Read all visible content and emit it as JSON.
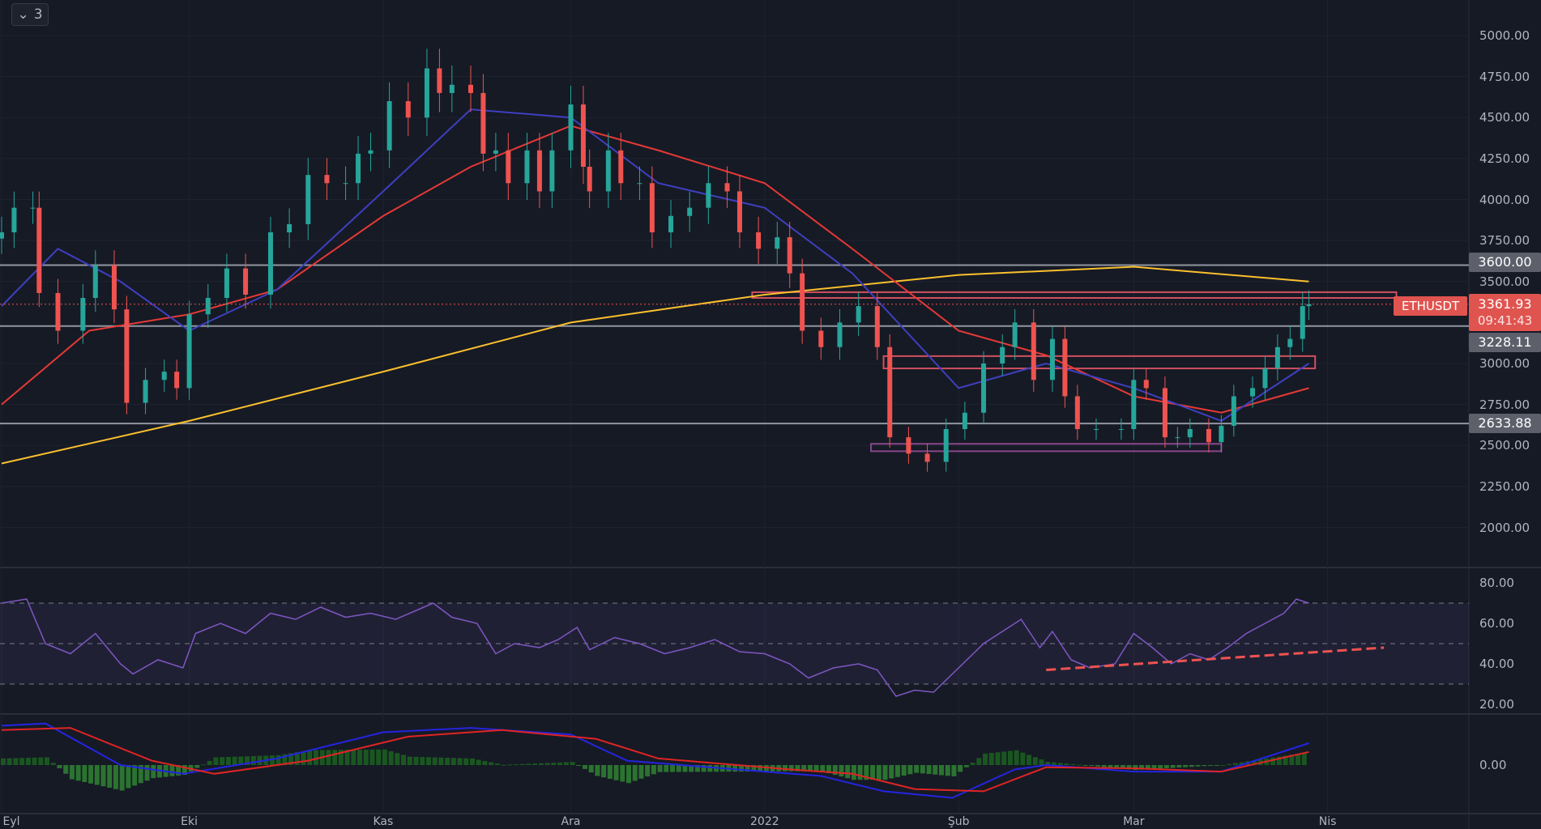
{
  "legend_toggle": {
    "icon": "chevron-down-icon",
    "count": "3"
  },
  "symbol": "ETHUSDT",
  "last_price": "3361.93",
  "countdown": "09:41:43",
  "colors": {
    "up": "#26a69a",
    "down": "#ef5350",
    "ma_fast": "#3f3fbf",
    "ma_mid": "#e53935",
    "ma_slow": "#fbc02d",
    "rsi": "#7e57c2",
    "macd": "#2424e0",
    "signal": "#e02424",
    "level": "#b2b5be",
    "zone_red": "#f05a6a",
    "zone_purple": "#9c4f9c"
  },
  "price_axis": {
    "ticks": [
      "5000.00",
      "4750.00",
      "4500.00",
      "4250.00",
      "4000.00",
      "3750.00",
      "3500.00",
      "3000.00",
      "2750.00",
      "2500.00",
      "2250.00",
      "2000.00"
    ]
  },
  "levels": [
    {
      "label": "3600.00",
      "value": 3600
    },
    {
      "label": "3228.11",
      "value": 3228.11
    },
    {
      "label": "2633.88",
      "value": 2633.88
    }
  ],
  "zones": [
    {
      "from": "2021-12-30",
      "to": "2022-04-12",
      "low": 3400,
      "high": 3435,
      "color": "zone_red"
    },
    {
      "from": "2022-01-20",
      "to": "2022-03-30",
      "low": 2970,
      "high": 3045,
      "color": "zone_red"
    },
    {
      "from": "2022-01-18",
      "to": "2022-03-15",
      "low": 2465,
      "high": 2510,
      "color": "zone_purple"
    }
  ],
  "time_axis": [
    {
      "label": "Eyl",
      "date": "2021-09-01"
    },
    {
      "label": "Eki",
      "date": "2021-10-01"
    },
    {
      "label": "Kas",
      "date": "2021-11-01"
    },
    {
      "label": "Ara",
      "date": "2021-12-01"
    },
    {
      "label": "2022",
      "date": "2022-01-01"
    },
    {
      "label": "Şub",
      "date": "2022-02-01"
    },
    {
      "label": "Mar",
      "date": "2022-03-01"
    },
    {
      "label": "Nis",
      "date": "2022-04-01"
    }
  ],
  "rsi_axis": {
    "ticks": [
      "80.00",
      "60.00",
      "40.00",
      "20.00"
    ]
  },
  "macd_axis": {
    "ticks": [
      "0.00"
    ]
  },
  "chart_data": {
    "type": "candlestick",
    "candles_close": [
      [
        "2021-09-01",
        3800
      ],
      [
        "2021-09-03",
        3950
      ],
      [
        "2021-09-06",
        3950
      ],
      [
        "2021-09-07",
        3430
      ],
      [
        "2021-09-10",
        3200
      ],
      [
        "2021-09-14",
        3400
      ],
      [
        "2021-09-16",
        3600
      ],
      [
        "2021-09-19",
        3330
      ],
      [
        "2021-09-21",
        2760
      ],
      [
        "2021-09-24",
        2900
      ],
      [
        "2021-09-27",
        2950
      ],
      [
        "2021-09-29",
        2850
      ],
      [
        "2021-10-01",
        3300
      ],
      [
        "2021-10-04",
        3400
      ],
      [
        "2021-10-07",
        3580
      ],
      [
        "2021-10-10",
        3420
      ],
      [
        "2021-10-14",
        3800
      ],
      [
        "2021-10-17",
        3850
      ],
      [
        "2021-10-20",
        4150
      ],
      [
        "2021-10-23",
        4100
      ],
      [
        "2021-10-26",
        4100
      ],
      [
        "2021-10-28",
        4280
      ],
      [
        "2021-10-30",
        4300
      ],
      [
        "2021-11-02",
        4600
      ],
      [
        "2021-11-05",
        4500
      ],
      [
        "2021-11-08",
        4800
      ],
      [
        "2021-11-10",
        4650
      ],
      [
        "2021-11-12",
        4700
      ],
      [
        "2021-11-15",
        4650
      ],
      [
        "2021-11-17",
        4280
      ],
      [
        "2021-11-19",
        4300
      ],
      [
        "2021-11-21",
        4100
      ],
      [
        "2021-11-24",
        4300
      ],
      [
        "2021-11-26",
        4050
      ],
      [
        "2021-11-28",
        4300
      ],
      [
        "2021-12-01",
        4580
      ],
      [
        "2021-12-03",
        4200
      ],
      [
        "2021-12-04",
        4050
      ],
      [
        "2021-12-07",
        4300
      ],
      [
        "2021-12-09",
        4100
      ],
      [
        "2021-12-12",
        4100
      ],
      [
        "2021-12-14",
        3800
      ],
      [
        "2021-12-17",
        3900
      ],
      [
        "2021-12-20",
        3950
      ],
      [
        "2021-12-23",
        4100
      ],
      [
        "2021-12-26",
        4050
      ],
      [
        "2021-12-28",
        3800
      ],
      [
        "2021-12-31",
        3700
      ],
      [
        "2022-01-03",
        3770
      ],
      [
        "2022-01-05",
        3550
      ],
      [
        "2022-01-07",
        3200
      ],
      [
        "2022-01-10",
        3100
      ],
      [
        "2022-01-13",
        3250
      ],
      [
        "2022-01-16",
        3350
      ],
      [
        "2022-01-19",
        3100
      ],
      [
        "2022-01-21",
        2550
      ],
      [
        "2022-01-24",
        2450
      ],
      [
        "2022-01-27",
        2400
      ],
      [
        "2022-01-30",
        2600
      ],
      [
        "2022-02-02",
        2700
      ],
      [
        "2022-02-05",
        3000
      ],
      [
        "2022-02-08",
        3100
      ],
      [
        "2022-02-10",
        3250
      ],
      [
        "2022-02-13",
        2900
      ],
      [
        "2022-02-16",
        3150
      ],
      [
        "2022-02-18",
        2800
      ],
      [
        "2022-02-20",
        2600
      ],
      [
        "2022-02-23",
        2600
      ],
      [
        "2022-02-27",
        2600
      ],
      [
        "2022-03-01",
        2900
      ],
      [
        "2022-03-03",
        2850
      ],
      [
        "2022-03-06",
        2550
      ],
      [
        "2022-03-08",
        2550
      ],
      [
        "2022-03-10",
        2600
      ],
      [
        "2022-03-13",
        2520
      ],
      [
        "2022-03-15",
        2620
      ],
      [
        "2022-03-17",
        2800
      ],
      [
        "2022-03-20",
        2850
      ],
      [
        "2022-03-22",
        2970
      ],
      [
        "2022-03-24",
        3100
      ],
      [
        "2022-03-26",
        3150
      ],
      [
        "2022-03-28",
        3350
      ],
      [
        "2022-03-29",
        3361.93
      ]
    ],
    "ma_fast": [
      [
        "2021-09-01",
        3350
      ],
      [
        "2021-09-10",
        3700
      ],
      [
        "2021-09-20",
        3500
      ],
      [
        "2021-10-01",
        3200
      ],
      [
        "2021-10-15",
        3450
      ],
      [
        "2021-11-01",
        4050
      ],
      [
        "2021-11-15",
        4550
      ],
      [
        "2021-12-01",
        4500
      ],
      [
        "2021-12-15",
        4100
      ],
      [
        "2022-01-01",
        3950
      ],
      [
        "2022-01-15",
        3550
      ],
      [
        "2022-02-01",
        2850
      ],
      [
        "2022-02-15",
        3000
      ],
      [
        "2022-03-01",
        2850
      ],
      [
        "2022-03-15",
        2650
      ],
      [
        "2022-03-29",
        3000
      ]
    ],
    "ma_mid": [
      [
        "2021-09-01",
        2750
      ],
      [
        "2021-09-15",
        3200
      ],
      [
        "2021-10-01",
        3300
      ],
      [
        "2021-10-15",
        3450
      ],
      [
        "2021-11-01",
        3900
      ],
      [
        "2021-11-15",
        4200
      ],
      [
        "2021-12-01",
        4450
      ],
      [
        "2021-12-15",
        4300
      ],
      [
        "2022-01-01",
        4100
      ],
      [
        "2022-01-15",
        3700
      ],
      [
        "2022-02-01",
        3200
      ],
      [
        "2022-02-15",
        3050
      ],
      [
        "2022-03-01",
        2800
      ],
      [
        "2022-03-15",
        2700
      ],
      [
        "2022-03-29",
        2850
      ]
    ],
    "ma_slow": [
      [
        "2021-09-01",
        2390
      ],
      [
        "2021-10-01",
        2650
      ],
      [
        "2021-11-01",
        2950
      ],
      [
        "2021-12-01",
        3250
      ],
      [
        "2022-01-01",
        3420
      ],
      [
        "2022-02-01",
        3540
      ],
      [
        "2022-03-01",
        3590
      ],
      [
        "2022-03-29",
        3500
      ]
    ],
    "rsi": [
      [
        "2021-09-01",
        70
      ],
      [
        "2021-09-05",
        72
      ],
      [
        "2021-09-08",
        50
      ],
      [
        "2021-09-12",
        45
      ],
      [
        "2021-09-16",
        55
      ],
      [
        "2021-09-20",
        40
      ],
      [
        "2021-09-22",
        35
      ],
      [
        "2021-09-26",
        42
      ],
      [
        "2021-09-30",
        38
      ],
      [
        "2021-10-02",
        55
      ],
      [
        "2021-10-06",
        60
      ],
      [
        "2021-10-10",
        55
      ],
      [
        "2021-10-14",
        65
      ],
      [
        "2021-10-18",
        62
      ],
      [
        "2021-10-22",
        68
      ],
      [
        "2021-10-26",
        63
      ],
      [
        "2021-10-30",
        65
      ],
      [
        "2021-11-03",
        62
      ],
      [
        "2021-11-06",
        66
      ],
      [
        "2021-11-09",
        70
      ],
      [
        "2021-11-12",
        63
      ],
      [
        "2021-11-16",
        60
      ],
      [
        "2021-11-19",
        45
      ],
      [
        "2021-11-22",
        50
      ],
      [
        "2021-11-26",
        48
      ],
      [
        "2021-11-29",
        52
      ],
      [
        "2021-12-02",
        58
      ],
      [
        "2021-12-04",
        47
      ],
      [
        "2021-12-08",
        53
      ],
      [
        "2021-12-12",
        50
      ],
      [
        "2021-12-16",
        45
      ],
      [
        "2021-12-20",
        48
      ],
      [
        "2021-12-24",
        52
      ],
      [
        "2021-12-28",
        46
      ],
      [
        "2022-01-01",
        45
      ],
      [
        "2022-01-05",
        40
      ],
      [
        "2022-01-08",
        33
      ],
      [
        "2022-01-12",
        38
      ],
      [
        "2022-01-16",
        40
      ],
      [
        "2022-01-19",
        37
      ],
      [
        "2022-01-22",
        24
      ],
      [
        "2022-01-25",
        27
      ],
      [
        "2022-01-28",
        26
      ],
      [
        "2022-02-01",
        38
      ],
      [
        "2022-02-05",
        50
      ],
      [
        "2022-02-09",
        58
      ],
      [
        "2022-02-11",
        62
      ],
      [
        "2022-02-14",
        48
      ],
      [
        "2022-02-16",
        56
      ],
      [
        "2022-02-19",
        42
      ],
      [
        "2022-02-22",
        38
      ],
      [
        "2022-02-26",
        40
      ],
      [
        "2022-03-01",
        55
      ],
      [
        "2022-03-04",
        48
      ],
      [
        "2022-03-07",
        40
      ],
      [
        "2022-03-10",
        45
      ],
      [
        "2022-03-13",
        42
      ],
      [
        "2022-03-16",
        48
      ],
      [
        "2022-03-19",
        55
      ],
      [
        "2022-03-22",
        60
      ],
      [
        "2022-03-25",
        65
      ],
      [
        "2022-03-27",
        72
      ],
      [
        "2022-03-29",
        70
      ]
    ],
    "rsi_trendline": [
      [
        "2022-02-15",
        37
      ],
      [
        "2022-04-10",
        48
      ]
    ],
    "rsi_bands": {
      "upper": 70,
      "middle": 50,
      "lower": 30
    },
    "macd": [
      [
        "2021-09-01",
        180
      ],
      [
        "2021-09-08",
        190
      ],
      [
        "2021-09-20",
        0
      ],
      [
        "2021-09-30",
        -40
      ],
      [
        "2021-10-15",
        30
      ],
      [
        "2021-11-01",
        150
      ],
      [
        "2021-11-15",
        170
      ],
      [
        "2021-12-01",
        140
      ],
      [
        "2021-12-10",
        20
      ],
      [
        "2022-01-01",
        -30
      ],
      [
        "2022-01-10",
        -50
      ],
      [
        "2022-01-20",
        -120
      ],
      [
        "2022-01-31",
        -150
      ],
      [
        "2022-02-10",
        -20
      ],
      [
        "2022-02-15",
        0
      ],
      [
        "2022-03-01",
        -30
      ],
      [
        "2022-03-15",
        -30
      ],
      [
        "2022-03-29",
        100
      ]
    ],
    "macd_signal": [
      [
        "2021-09-01",
        160
      ],
      [
        "2021-09-12",
        170
      ],
      [
        "2021-09-25",
        20
      ],
      [
        "2021-10-05",
        -40
      ],
      [
        "2021-10-20",
        20
      ],
      [
        "2021-11-05",
        130
      ],
      [
        "2021-11-20",
        160
      ],
      [
        "2021-12-05",
        120
      ],
      [
        "2021-12-15",
        30
      ],
      [
        "2022-01-05",
        -20
      ],
      [
        "2022-01-15",
        -40
      ],
      [
        "2022-01-25",
        -110
      ],
      [
        "2022-02-05",
        -120
      ],
      [
        "2022-02-15",
        -10
      ],
      [
        "2022-03-01",
        -15
      ],
      [
        "2022-03-15",
        -30
      ],
      [
        "2022-03-29",
        60
      ]
    ]
  }
}
